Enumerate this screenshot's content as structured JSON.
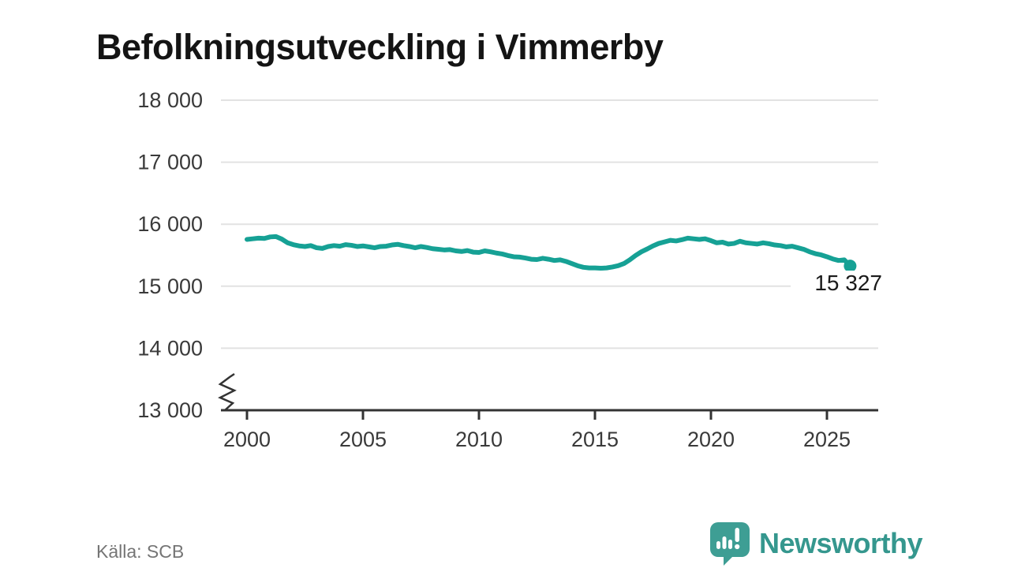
{
  "title": "Befolkningsutveckling i Vimmerby",
  "source": "Källa: SCB",
  "branding": {
    "name": "Newsworthy",
    "logo_icon": "speech-bubble-bar-chart-exclamation",
    "logo_color": "#3E9E94",
    "name_color": "#35978E"
  },
  "colors": {
    "line": "#16A195",
    "axis": "#333333",
    "grid": "#E2E2E2",
    "tick_label": "#3A3A3A",
    "title": "#141414",
    "source": "#757575",
    "end_label": "#1A1A1A"
  },
  "chart_data": {
    "type": "line",
    "title": "Befolkningsutveckling i Vimmerby",
    "xlabel": "",
    "ylabel": "",
    "legend": "none",
    "grid": "horizontal",
    "axis_break_below": 13000,
    "ylim": [
      13000,
      18000
    ],
    "xlim": [
      1998.9,
      2027.2
    ],
    "y_ticks": [
      13000,
      14000,
      15000,
      16000,
      17000,
      18000
    ],
    "y_tick_labels": [
      "13 000",
      "14 000",
      "15 000",
      "16 000",
      "17 000",
      "18 000"
    ],
    "x_ticks": [
      2000,
      2005,
      2010,
      2015,
      2020,
      2025
    ],
    "x_tick_labels": [
      "2000",
      "2005",
      "2010",
      "2015",
      "2020",
      "2025"
    ],
    "x_start": 2000,
    "x_step": 0.25,
    "values": [
      15755,
      15765,
      15775,
      15770,
      15795,
      15800,
      15760,
      15700,
      15670,
      15650,
      15640,
      15655,
      15620,
      15610,
      15640,
      15655,
      15645,
      15670,
      15660,
      15640,
      15650,
      15635,
      15620,
      15640,
      15645,
      15665,
      15675,
      15655,
      15640,
      15620,
      15640,
      15625,
      15605,
      15595,
      15585,
      15590,
      15570,
      15560,
      15575,
      15550,
      15545,
      15570,
      15555,
      15535,
      15520,
      15495,
      15475,
      15470,
      15455,
      15435,
      15430,
      15450,
      15435,
      15415,
      15425,
      15400,
      15365,
      15330,
      15305,
      15295,
      15295,
      15290,
      15295,
      15310,
      15330,
      15365,
      15425,
      15495,
      15555,
      15600,
      15650,
      15690,
      15715,
      15740,
      15730,
      15750,
      15775,
      15765,
      15755,
      15765,
      15735,
      15700,
      15710,
      15680,
      15690,
      15725,
      15700,
      15690,
      15680,
      15700,
      15685,
      15665,
      15655,
      15635,
      15645,
      15620,
      15595,
      15555,
      15525,
      15505,
      15475,
      15440,
      15415,
      15425,
      15327
    ],
    "last_value": 15327,
    "last_point_label": "15 327"
  }
}
